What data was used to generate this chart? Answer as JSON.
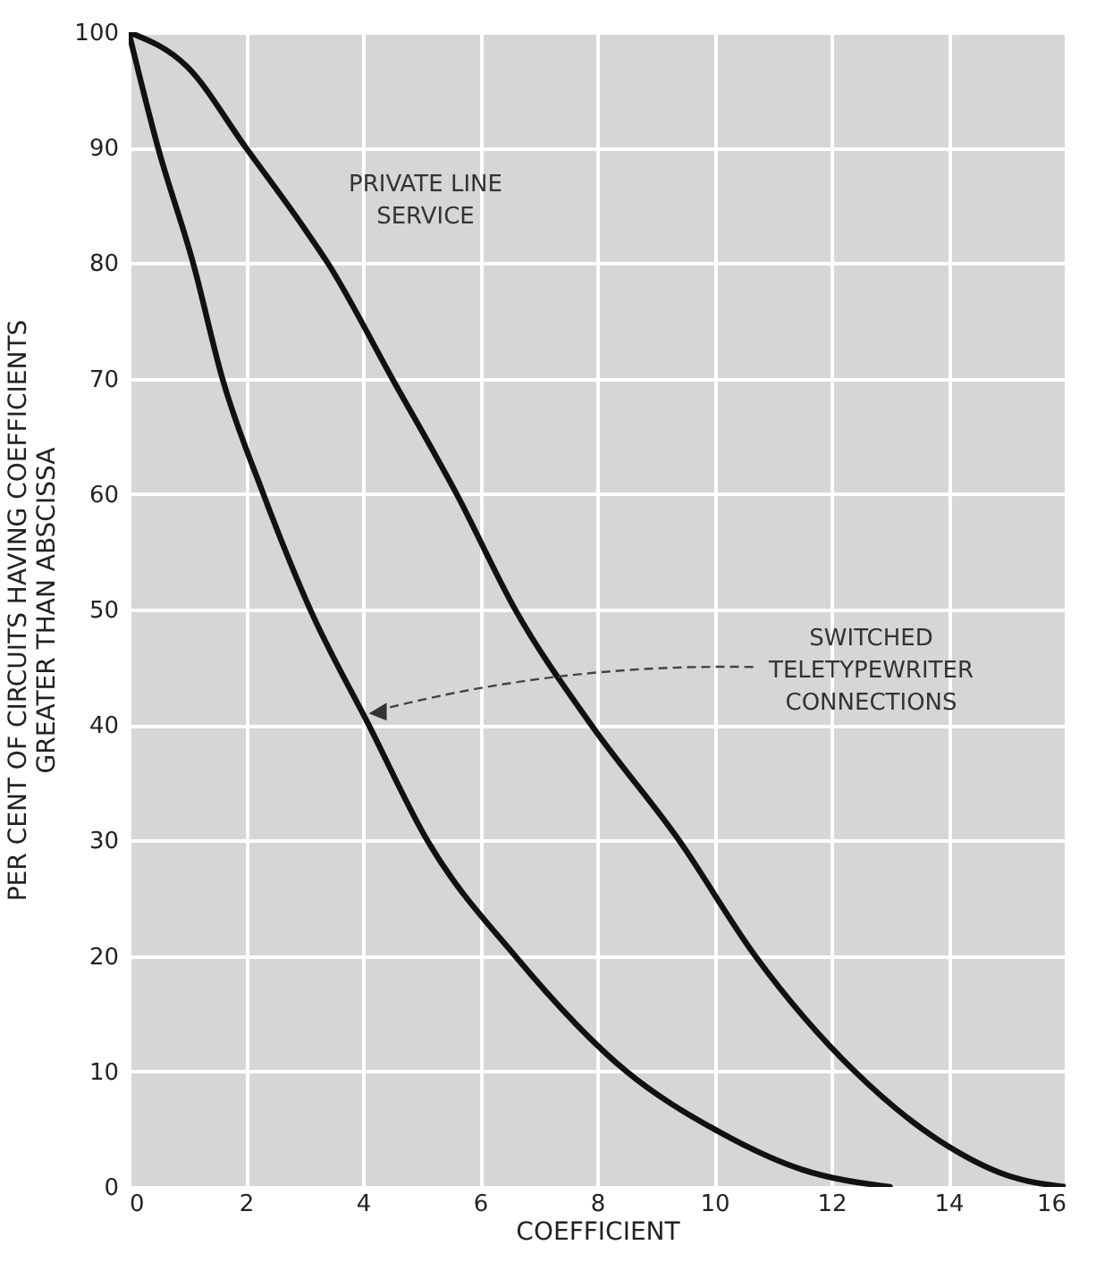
{
  "chart_data": {
    "type": "line",
    "xlabel": "COEFFICIENT",
    "ylabel": "PER CENT OF CIRCUITS HAVING COEFFICIENTS\nGREATER THAN ABSCISSA",
    "xlim": [
      0,
      16
    ],
    "xticks": [
      0,
      2,
      4,
      6,
      8,
      10,
      12,
      14,
      16
    ],
    "ylim": [
      0,
      100
    ],
    "yticks": [
      0,
      10,
      20,
      30,
      40,
      50,
      60,
      70,
      80,
      90,
      100
    ],
    "grid": true,
    "marker": "none",
    "line_style": "solid",
    "series": [
      {
        "color": "#111111",
        "x": [
          0,
          1,
          2,
          3,
          3.4,
          4.5,
          5.6,
          6.6,
          7.9,
          9.4,
          10.7,
          12.4,
          14,
          15,
          16
        ],
        "values": [
          100,
          97,
          90,
          83,
          80,
          70,
          60,
          50,
          40,
          30,
          20,
          10,
          3.5,
          1,
          0
        ]
      },
      {
        "color": "#111111",
        "x": [
          0,
          0.5,
          1.1,
          1.6,
          2.3,
          3.1,
          4.1,
          5.1,
          6.6,
          8.5,
          10,
          11.5,
          13
        ],
        "values": [
          100,
          90,
          80,
          70,
          60,
          50,
          40,
          30,
          20,
          10,
          5,
          1.5,
          0
        ]
      }
    ],
    "annotations": [
      "PRIVATE LINE\nSERVICE",
      {
        "text": "SWITCHED\nTELETYPEWRITER\nCONNECTIONS",
        "x": 4.1,
        "y": 41
      }
    ]
  }
}
